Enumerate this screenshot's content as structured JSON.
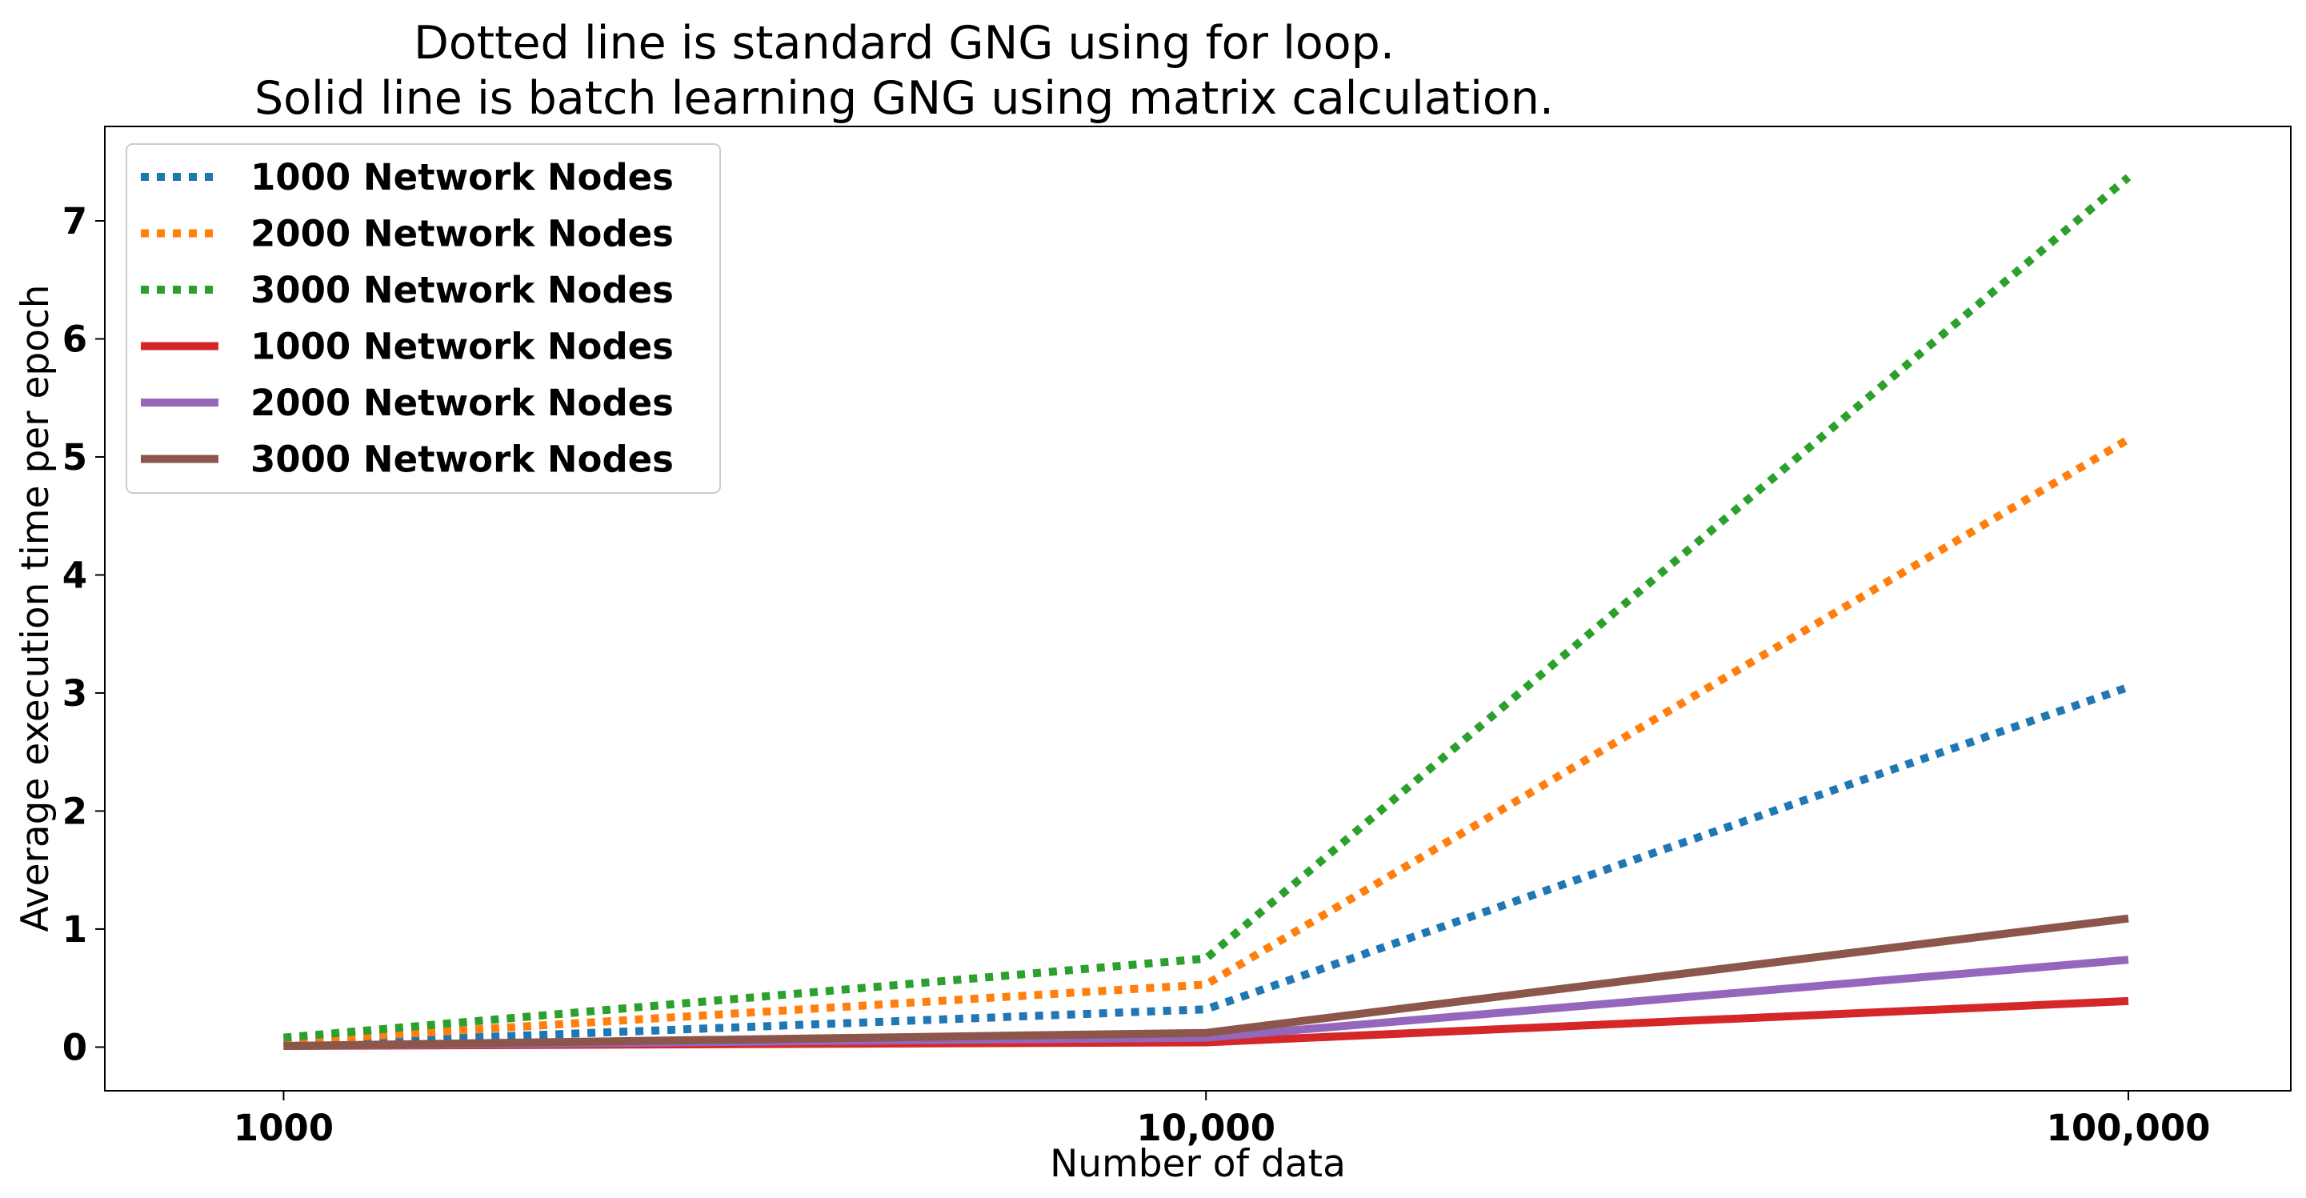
{
  "chart_data": {
    "type": "line",
    "title_lines": [
      "Dotted line is standard GNG using for loop.",
      "Solid line is batch learning GNG using matrix calculation."
    ],
    "xlabel": "Number of data",
    "ylabel": "Average execution time per epoch",
    "x_scale": "log",
    "x": [
      1000,
      10000,
      100000
    ],
    "x_tick_labels": [
      "1000",
      "10,000",
      "100,000"
    ],
    "xlim": [
      640,
      150000
    ],
    "y_ticks": [
      0,
      1,
      2,
      3,
      4,
      5,
      6,
      7
    ],
    "ylim": [
      -0.37,
      7.8
    ],
    "grid": false,
    "legend_position": "upper-left",
    "series": [
      {
        "name": "1000 Network Nodes",
        "style": "dotted",
        "color": "#1f77b4",
        "values": [
          0.02,
          0.32,
          3.05
        ]
      },
      {
        "name": "2000 Network Nodes",
        "style": "dotted",
        "color": "#ff7f0e",
        "values": [
          0.05,
          0.53,
          5.15
        ]
      },
      {
        "name": "3000 Network Nodes",
        "style": "dotted",
        "color": "#2ca02c",
        "values": [
          0.08,
          0.75,
          7.37
        ]
      },
      {
        "name": "1000 Network Nodes",
        "style": "solid",
        "color": "#d62728",
        "values": [
          0.01,
          0.04,
          0.39
        ]
      },
      {
        "name": "2000 Network Nodes",
        "style": "solid",
        "color": "#9467bd",
        "values": [
          0.01,
          0.08,
          0.74
        ]
      },
      {
        "name": "3000 Network Nodes",
        "style": "solid",
        "color": "#8c564b",
        "values": [
          0.01,
          0.12,
          1.09
        ]
      }
    ]
  }
}
